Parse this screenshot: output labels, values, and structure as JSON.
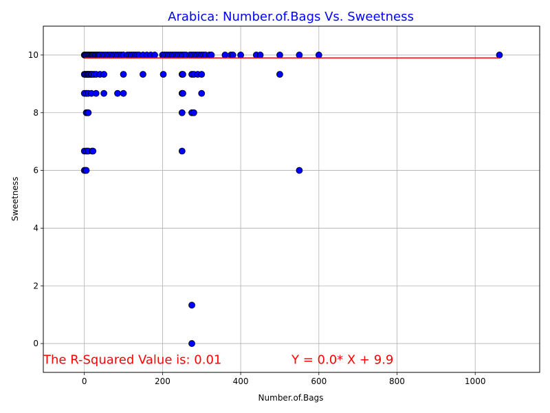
{
  "chart_data": {
    "type": "scatter",
    "title": "Arabica: Number.of.Bags Vs. Sweetness",
    "xlabel": "Number.of.Bags",
    "ylabel": "Sweetness",
    "xlim": [
      -105,
      1165
    ],
    "ylim": [
      -1,
      11
    ],
    "xticks": [
      0,
      200,
      400,
      600,
      800,
      1000
    ],
    "yticks": [
      0,
      2,
      4,
      6,
      8,
      10
    ],
    "grid": true,
    "colors": {
      "title": "#0000ff",
      "points": "#0000ff",
      "point_edge": "#000000",
      "regression": "#ff0000",
      "annotation": "#ff0000",
      "grid": "#b0b0b0"
    },
    "regression": {
      "slope": 0.0,
      "intercept": 9.9,
      "x_range": [
        0,
        1062
      ]
    },
    "annotations": [
      {
        "text": "The R-Squared Value is: 0.01",
        "x": -105,
        "y": -0.7
      },
      {
        "text": "Y = 0.0* X + 9.9",
        "x": 530,
        "y": -0.7
      }
    ],
    "points": [
      [
        0,
        10
      ],
      [
        1,
        10
      ],
      [
        2,
        10
      ],
      [
        3,
        10
      ],
      [
        5,
        10
      ],
      [
        8,
        10
      ],
      [
        10,
        10
      ],
      [
        13,
        10
      ],
      [
        15,
        10
      ],
      [
        18,
        10
      ],
      [
        20,
        10
      ],
      [
        22,
        10
      ],
      [
        25,
        10
      ],
      [
        28,
        10
      ],
      [
        30,
        10
      ],
      [
        33,
        10
      ],
      [
        35,
        10
      ],
      [
        38,
        10
      ],
      [
        40,
        10
      ],
      [
        45,
        10
      ],
      [
        50,
        10
      ],
      [
        55,
        10
      ],
      [
        60,
        10
      ],
      [
        65,
        10
      ],
      [
        70,
        10
      ],
      [
        75,
        10
      ],
      [
        80,
        10
      ],
      [
        85,
        10
      ],
      [
        90,
        10
      ],
      [
        95,
        10
      ],
      [
        100,
        10
      ],
      [
        110,
        10
      ],
      [
        115,
        10
      ],
      [
        120,
        10
      ],
      [
        125,
        10
      ],
      [
        130,
        10
      ],
      [
        135,
        10
      ],
      [
        140,
        10
      ],
      [
        150,
        10
      ],
      [
        160,
        10
      ],
      [
        170,
        10
      ],
      [
        180,
        10
      ],
      [
        200,
        10
      ],
      [
        205,
        10
      ],
      [
        210,
        10
      ],
      [
        215,
        10
      ],
      [
        220,
        10
      ],
      [
        225,
        10
      ],
      [
        230,
        10
      ],
      [
        235,
        10
      ],
      [
        240,
        10
      ],
      [
        245,
        10
      ],
      [
        250,
        10
      ],
      [
        255,
        10
      ],
      [
        260,
        10
      ],
      [
        270,
        10
      ],
      [
        275,
        10
      ],
      [
        280,
        10
      ],
      [
        285,
        10
      ],
      [
        290,
        10
      ],
      [
        295,
        10
      ],
      [
        300,
        10
      ],
      [
        305,
        10
      ],
      [
        310,
        10
      ],
      [
        320,
        10
      ],
      [
        325,
        10
      ],
      [
        360,
        10
      ],
      [
        375,
        10
      ],
      [
        380,
        10
      ],
      [
        400,
        10
      ],
      [
        440,
        10
      ],
      [
        450,
        10
      ],
      [
        500,
        10
      ],
      [
        550,
        10
      ],
      [
        600,
        10
      ],
      [
        1062,
        10
      ],
      [
        0,
        9.33
      ],
      [
        2,
        9.33
      ],
      [
        5,
        9.33
      ],
      [
        8,
        9.33
      ],
      [
        10,
        9.33
      ],
      [
        12,
        9.33
      ],
      [
        15,
        9.33
      ],
      [
        18,
        9.33
      ],
      [
        20,
        9.33
      ],
      [
        25,
        9.33
      ],
      [
        30,
        9.33
      ],
      [
        40,
        9.33
      ],
      [
        50,
        9.33
      ],
      [
        100,
        9.33
      ],
      [
        150,
        9.33
      ],
      [
        202,
        9.33
      ],
      [
        250,
        9.33
      ],
      [
        252,
        9.33
      ],
      [
        275,
        9.33
      ],
      [
        280,
        9.33
      ],
      [
        290,
        9.33
      ],
      [
        300,
        9.33
      ],
      [
        500,
        9.33
      ],
      [
        0,
        8.67
      ],
      [
        5,
        8.67
      ],
      [
        10,
        8.67
      ],
      [
        18,
        8.67
      ],
      [
        30,
        8.67
      ],
      [
        50,
        8.67
      ],
      [
        85,
        8.67
      ],
      [
        100,
        8.67
      ],
      [
        250,
        8.67
      ],
      [
        252,
        8.67
      ],
      [
        300,
        8.67
      ],
      [
        5,
        8
      ],
      [
        8,
        8
      ],
      [
        10,
        8
      ],
      [
        250,
        8
      ],
      [
        275,
        8
      ],
      [
        280,
        8
      ],
      [
        0,
        6.67
      ],
      [
        5,
        6.67
      ],
      [
        10,
        6.67
      ],
      [
        20,
        6.67
      ],
      [
        22,
        6.67
      ],
      [
        250,
        6.67
      ],
      [
        0,
        6
      ],
      [
        3,
        6
      ],
      [
        5,
        6
      ],
      [
        550,
        6
      ],
      [
        275,
        1.33
      ],
      [
        275,
        0
      ]
    ]
  }
}
